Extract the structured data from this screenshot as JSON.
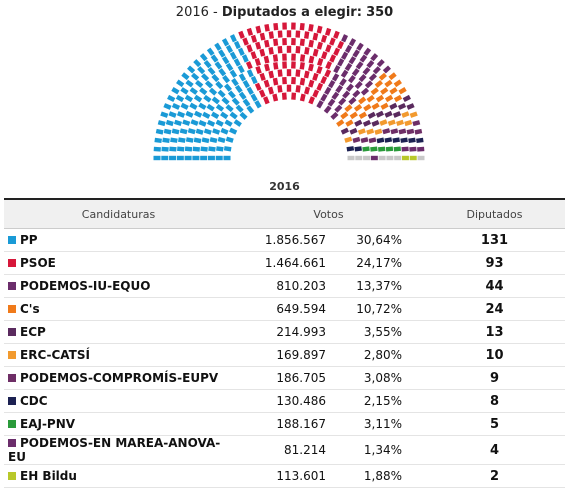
{
  "header": {
    "year": "2016 -",
    "label": "Diputados a elegir:",
    "total": "350"
  },
  "table": {
    "caption": "2016",
    "headers": [
      "Candidaturas",
      "Votos",
      "Diputados"
    ],
    "rows": [
      {
        "name": "PP",
        "votes": "1.856.567",
        "percent": "30,64%",
        "seats": 131,
        "color": "#1a9ad6"
      },
      {
        "name": "PSOE",
        "votes": "1.464.661",
        "percent": "24,17%",
        "seats": 93,
        "color": "#d6173a"
      },
      {
        "name": "PODEMOS-IU-EQUO",
        "votes": "810.203",
        "percent": "13,37%",
        "seats": 44,
        "color": "#6b2d6b"
      },
      {
        "name": "C's",
        "votes": "649.594",
        "percent": "10,72%",
        "seats": 24,
        "color": "#f07a1a"
      },
      {
        "name": "ECP",
        "votes": "214.993",
        "percent": "3,55%",
        "seats": 13,
        "color": "#5a2a5e"
      },
      {
        "name": "ERC-CATSÍ",
        "votes": "169.897",
        "percent": "2,80%",
        "seats": 10,
        "color": "#f29a2e"
      },
      {
        "name": "PODEMOS-COMPROMÍS-EUPV",
        "votes": "186.705",
        "percent": "3,08%",
        "seats": 9,
        "color": "#6e2e66"
      },
      {
        "name": "CDC",
        "votes": "130.486",
        "percent": "2,15%",
        "seats": 8,
        "color": "#1c2152"
      },
      {
        "name": "EAJ-PNV",
        "votes": "188.167",
        "percent": "3,11%",
        "seats": 5,
        "color": "#2a9a3a"
      },
      {
        "name": "PODEMOS-EN MAREA-ANOVA-EU",
        "votes": "81.214",
        "percent": "1,34%",
        "seats": 4,
        "color": "#6b2d6b"
      },
      {
        "name": "EH Bildu",
        "votes": "113.601",
        "percent": "1,88%",
        "seats": 2,
        "color": "#b8c82a"
      }
    ]
  }
}
